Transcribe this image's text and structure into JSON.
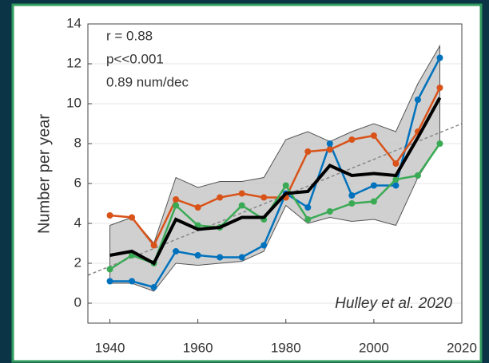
{
  "chart_data": {
    "type": "line",
    "y_label": "Number per year",
    "annotations": [
      "r = 0.88",
      "p<<0.001",
      "0.89 num/dec"
    ],
    "source": "Hulley et al. 2020",
    "x": [
      1940,
      1945,
      1950,
      1955,
      1960,
      1965,
      1970,
      1975,
      1980,
      1985,
      1990,
      1995,
      2000,
      2005,
      2010,
      2015
    ],
    "series": [
      {
        "color": "#0072bd",
        "values": [
          1.1,
          1.1,
          0.8,
          2.6,
          2.4,
          2.3,
          2.3,
          2.9,
          5.5,
          4.8,
          8.0,
          5.4,
          5.9,
          5.9,
          10.2,
          12.3
        ]
      },
      {
        "color": "#d95319",
        "values": [
          4.4,
          4.3,
          2.9,
          5.2,
          4.8,
          5.3,
          5.5,
          5.3,
          5.3,
          7.6,
          7.7,
          8.2,
          8.4,
          7.0,
          8.6,
          10.8
        ]
      },
      {
        "color": "#3aaa55",
        "values": [
          1.7,
          2.4,
          2.0,
          4.9,
          3.9,
          3.8,
          4.9,
          4.2,
          5.9,
          4.2,
          4.6,
          5.0,
          5.1,
          6.2,
          6.4,
          8.0
        ]
      },
      {
        "color": "#000000",
        "values": [
          2.4,
          2.6,
          2.0,
          4.2,
          3.7,
          3.8,
          4.3,
          4.3,
          5.5,
          5.6,
          6.9,
          6.4,
          6.5,
          6.4,
          8.3,
          10.3
        ]
      }
    ],
    "band": {
      "color": "#c8c8c8",
      "upper": [
        3.9,
        4.3,
        3.0,
        6.3,
        5.8,
        6.1,
        6.1,
        6.3,
        8.2,
        8.6,
        8.1,
        8.6,
        9.0,
        8.6,
        11.0,
        12.9
      ],
      "lower": [
        1.0,
        1.0,
        0.6,
        2.0,
        1.9,
        2.0,
        2.1,
        2.6,
        4.9,
        4.0,
        4.3,
        4.1,
        4.2,
        3.9,
        6.3,
        8.0
      ]
    },
    "trend": {
      "color": "#888888",
      "x": [
        1935,
        2020
      ],
      "values": [
        1.4,
        9.0
      ]
    },
    "xlim": [
      1935,
      2020
    ],
    "ylim": [
      -1,
      14
    ],
    "xticks": [
      1940,
      1960,
      1980,
      2000,
      2020
    ],
    "yticks": [
      0,
      2,
      4,
      6,
      8,
      10,
      12,
      14
    ],
    "grid": true
  }
}
